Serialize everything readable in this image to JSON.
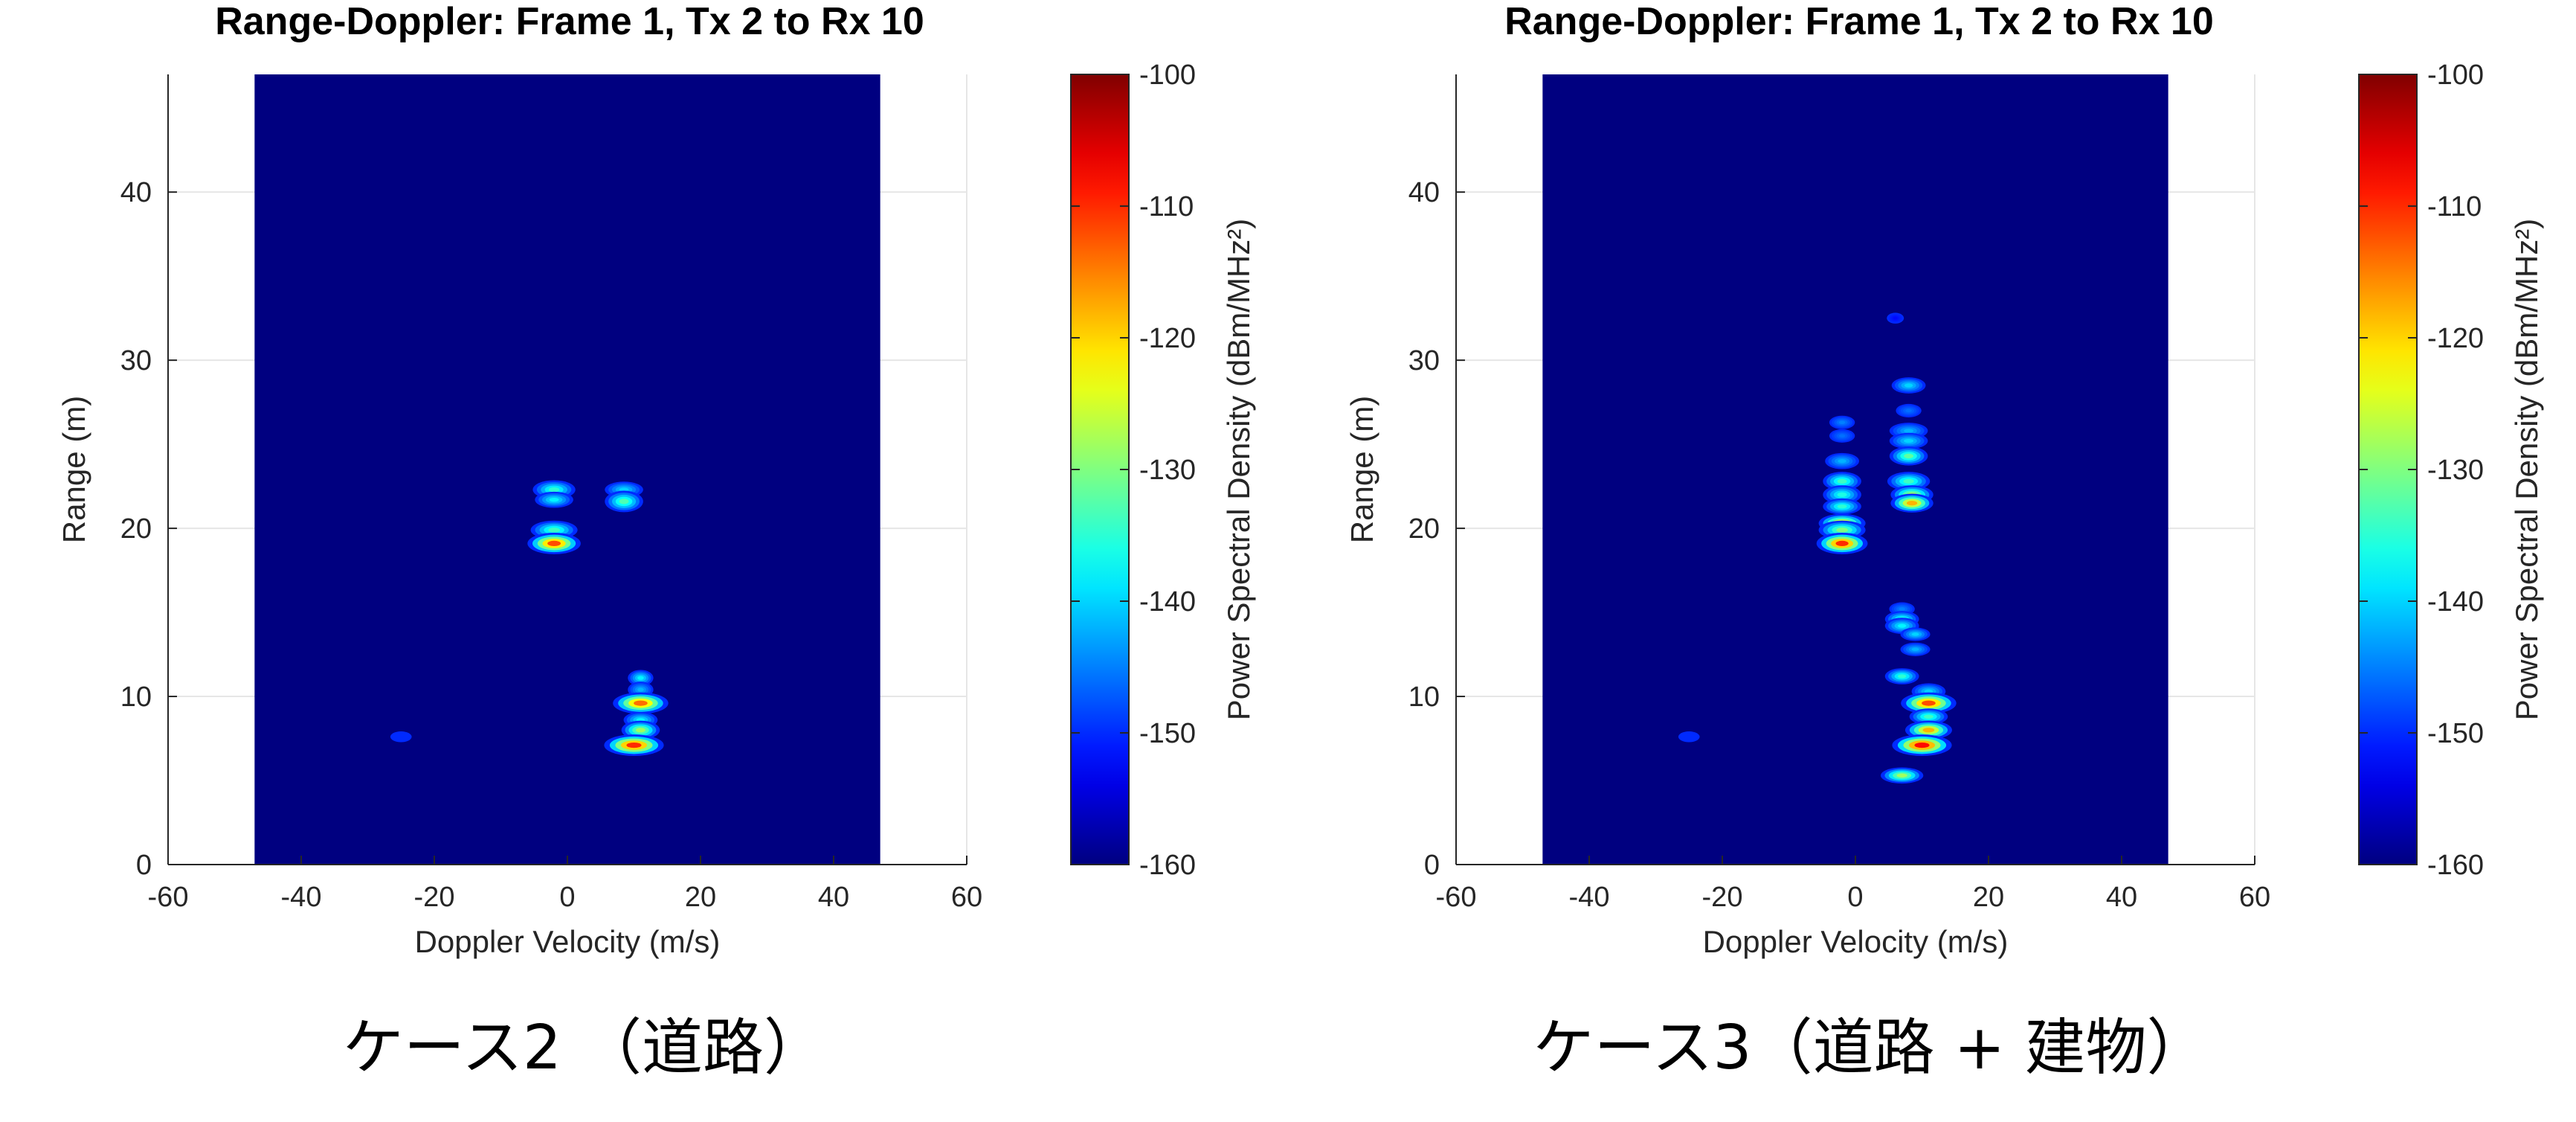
{
  "chart_data": [
    {
      "type": "heatmap",
      "title": "Range-Doppler: Frame 1, Tx 2 to Rx 10",
      "xlabel": "Doppler Velocity (m/s)",
      "ylabel": "Range (m)",
      "xlim": [
        -60,
        60
      ],
      "ylim": [
        0,
        47
      ],
      "xticks": [
        "-60",
        "-40",
        "-20",
        "0",
        "20",
        "40",
        "60"
      ],
      "yticks": [
        "0",
        "10",
        "20",
        "30",
        "40"
      ],
      "data_extent_x": [
        -47,
        47
      ],
      "grid": true,
      "colorbar": {
        "label": "Power Spectral Density (dBm/MHz²)",
        "range": [
          -160,
          -100
        ],
        "ticks": [
          "-100",
          "-110",
          "-120",
          "-130",
          "-140",
          "-150",
          "-160"
        ],
        "colormap": "jet"
      },
      "background_level": -160,
      "spots": [
        {
          "v": -2,
          "r": 22.3,
          "w": 2.0,
          "h": 0.35,
          "p": -135
        },
        {
          "v": -2,
          "r": 21.7,
          "w": 1.8,
          "h": 0.3,
          "p": -138
        },
        {
          "v": -2,
          "r": 19.9,
          "w": 2.2,
          "h": 0.35,
          "p": -134
        },
        {
          "v": -2,
          "r": 19.1,
          "w": 2.5,
          "h": 0.4,
          "p": -112
        },
        {
          "v": 8.5,
          "r": 22.3,
          "w": 1.8,
          "h": 0.3,
          "p": -140
        },
        {
          "v": 8.5,
          "r": 21.6,
          "w": 1.8,
          "h": 0.4,
          "p": -133
        },
        {
          "v": 11,
          "r": 11.1,
          "w": 1.2,
          "h": 0.3,
          "p": -138
        },
        {
          "v": 11,
          "r": 10.4,
          "w": 1.2,
          "h": 0.3,
          "p": -142
        },
        {
          "v": 11,
          "r": 9.6,
          "w": 2.6,
          "h": 0.4,
          "p": -114
        },
        {
          "v": 11,
          "r": 8.6,
          "w": 1.6,
          "h": 0.3,
          "p": -138
        },
        {
          "v": 11,
          "r": 8.0,
          "w": 1.8,
          "h": 0.35,
          "p": -128
        },
        {
          "v": 10,
          "r": 7.1,
          "w": 2.8,
          "h": 0.4,
          "p": -110
        },
        {
          "v": -25,
          "r": 7.6,
          "w": 1.0,
          "h": 0.2,
          "p": -150
        }
      ],
      "caption": "ケース2 （道路）"
    },
    {
      "type": "heatmap",
      "title": "Range-Doppler: Frame 1, Tx 2 to Rx 10",
      "xlabel": "Doppler Velocity (m/s)",
      "ylabel": "Range (m)",
      "xlim": [
        -60,
        60
      ],
      "ylim": [
        0,
        47
      ],
      "xticks": [
        "-60",
        "-40",
        "-20",
        "0",
        "20",
        "40",
        "60"
      ],
      "yticks": [
        "0",
        "10",
        "20",
        "30",
        "40"
      ],
      "data_extent_x": [
        -47,
        47
      ],
      "grid": true,
      "colorbar": {
        "label": "Power Spectral Density (dBm/MHz²)",
        "range": [
          -160,
          -100
        ],
        "ticks": [
          "-100",
          "-110",
          "-120",
          "-130",
          "-140",
          "-150",
          "-160"
        ],
        "colormap": "jet"
      },
      "background_level": -160,
      "spots": [
        {
          "v": 6,
          "r": 32.5,
          "w": 0.8,
          "h": 0.2,
          "p": -152
        },
        {
          "v": 8,
          "r": 28.5,
          "w": 1.6,
          "h": 0.3,
          "p": -140
        },
        {
          "v": 8,
          "r": 27.0,
          "w": 1.2,
          "h": 0.25,
          "p": -146
        },
        {
          "v": 8,
          "r": 25.8,
          "w": 1.8,
          "h": 0.3,
          "p": -142
        },
        {
          "v": 8,
          "r": 25.2,
          "w": 1.8,
          "h": 0.3,
          "p": -140
        },
        {
          "v": 8,
          "r": 24.3,
          "w": 1.8,
          "h": 0.35,
          "p": -132
        },
        {
          "v": 8,
          "r": 22.8,
          "w": 2.0,
          "h": 0.35,
          "p": -134
        },
        {
          "v": 8.5,
          "r": 22.0,
          "w": 2.0,
          "h": 0.35,
          "p": -128
        },
        {
          "v": 8.5,
          "r": 21.5,
          "w": 2.0,
          "h": 0.35,
          "p": -118
        },
        {
          "v": -2,
          "r": 26.3,
          "w": 1.2,
          "h": 0.25,
          "p": -145
        },
        {
          "v": -2,
          "r": 25.5,
          "w": 1.2,
          "h": 0.25,
          "p": -146
        },
        {
          "v": -2,
          "r": 24.0,
          "w": 1.6,
          "h": 0.3,
          "p": -142
        },
        {
          "v": -2,
          "r": 22.8,
          "w": 1.8,
          "h": 0.35,
          "p": -134
        },
        {
          "v": -2,
          "r": 22.0,
          "w": 1.8,
          "h": 0.35,
          "p": -136
        },
        {
          "v": -2,
          "r": 21.3,
          "w": 1.8,
          "h": 0.3,
          "p": -135
        },
        {
          "v": -2,
          "r": 20.3,
          "w": 2.2,
          "h": 0.35,
          "p": -120
        },
        {
          "v": -2,
          "r": 19.9,
          "w": 2.2,
          "h": 0.35,
          "p": -130
        },
        {
          "v": -2,
          "r": 19.1,
          "w": 2.4,
          "h": 0.4,
          "p": -110
        },
        {
          "v": 7,
          "r": 15.2,
          "w": 1.2,
          "h": 0.25,
          "p": -145
        },
        {
          "v": 7,
          "r": 14.6,
          "w": 1.6,
          "h": 0.3,
          "p": -136
        },
        {
          "v": 7,
          "r": 14.2,
          "w": 1.6,
          "h": 0.3,
          "p": -138
        },
        {
          "v": 9,
          "r": 13.7,
          "w": 1.4,
          "h": 0.25,
          "p": -140
        },
        {
          "v": 9,
          "r": 12.8,
          "w": 1.4,
          "h": 0.25,
          "p": -142
        },
        {
          "v": 7,
          "r": 11.2,
          "w": 1.6,
          "h": 0.3,
          "p": -135
        },
        {
          "v": 11,
          "r": 10.3,
          "w": 1.6,
          "h": 0.3,
          "p": -140
        },
        {
          "v": 11,
          "r": 9.6,
          "w": 2.6,
          "h": 0.4,
          "p": -112
        },
        {
          "v": 11,
          "r": 8.8,
          "w": 1.8,
          "h": 0.3,
          "p": -134
        },
        {
          "v": 11,
          "r": 8.0,
          "w": 2.2,
          "h": 0.35,
          "p": -118
        },
        {
          "v": 10,
          "r": 7.1,
          "w": 2.8,
          "h": 0.4,
          "p": -108
        },
        {
          "v": 7,
          "r": 5.3,
          "w": 2.0,
          "h": 0.3,
          "p": -128
        },
        {
          "v": -25,
          "r": 7.6,
          "w": 1.0,
          "h": 0.2,
          "p": -150
        }
      ],
      "caption": "ケース3（道路 + 建物）"
    }
  ]
}
